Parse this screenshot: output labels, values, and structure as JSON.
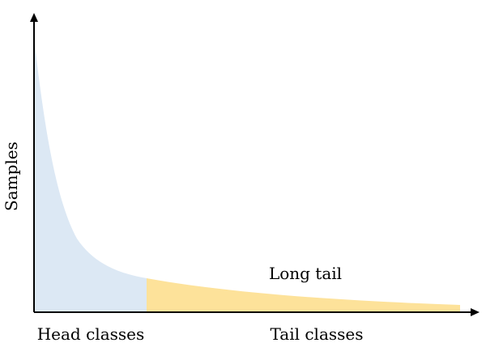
{
  "y_axis_label": "Samples",
  "head_label": "Head classes",
  "tail_label": "Tail classes",
  "annotation": "Long tail"
}
